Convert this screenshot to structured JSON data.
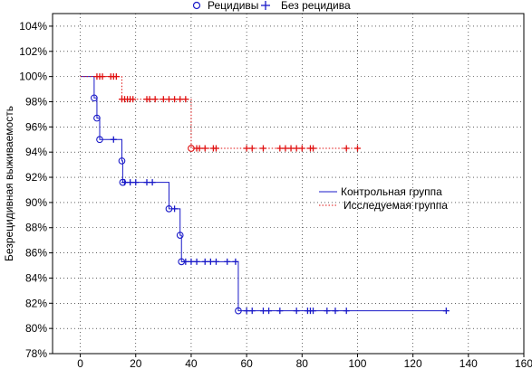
{
  "chart_data": {
    "type": "line",
    "subtype": "kaplan-meier step plot",
    "title": "",
    "xlabel": "",
    "ylabel": "Безрецидивная выживаемость",
    "xlim": [
      -10,
      160
    ],
    "ylim": [
      78,
      105
    ],
    "x_ticks": [
      0,
      20,
      40,
      60,
      80,
      100,
      120,
      140,
      160
    ],
    "y_ticks": [
      78,
      80,
      82,
      84,
      86,
      88,
      90,
      92,
      94,
      96,
      98,
      100,
      102,
      104
    ],
    "y_tick_labels": [
      "78%",
      "80%",
      "82%",
      "84%",
      "86%",
      "88%",
      "90%",
      "92%",
      "94%",
      "96%",
      "98%",
      "100%",
      "102%",
      "104%"
    ],
    "grid": true,
    "marker_legend": {
      "position": "top-center",
      "items": [
        {
          "symbol": "circle",
          "label": "Рецидивы"
        },
        {
          "symbol": "plus",
          "label": "Без рецидива"
        }
      ]
    },
    "legend_position": "right",
    "series": [
      {
        "name": "Контрольная группа",
        "color": "#1a1ac8",
        "line_style": "solid",
        "steps": [
          [
            0,
            100
          ],
          [
            5,
            98.3
          ],
          [
            6,
            96.7
          ],
          [
            7,
            95
          ],
          [
            15,
            93.3
          ],
          [
            15.3,
            91.6
          ],
          [
            32,
            89.5
          ],
          [
            36,
            87.4
          ],
          [
            36.5,
            85.3
          ],
          [
            57,
            81.4
          ],
          [
            132,
            81.4
          ]
        ],
        "events": [
          [
            5,
            98.3
          ],
          [
            6,
            96.7
          ],
          [
            7,
            95
          ],
          [
            15,
            93.3
          ],
          [
            15.3,
            91.6
          ],
          [
            32,
            89.5
          ],
          [
            36,
            87.4
          ],
          [
            36.5,
            85.3
          ],
          [
            57,
            81.4
          ]
        ],
        "censored": [
          [
            12,
            95
          ],
          [
            16,
            91.6
          ],
          [
            18,
            91.6
          ],
          [
            20,
            91.6
          ],
          [
            24,
            91.6
          ],
          [
            26,
            91.6
          ],
          [
            34,
            89.5
          ],
          [
            38,
            85.3
          ],
          [
            40,
            85.3
          ],
          [
            42,
            85.3
          ],
          [
            45,
            85.3
          ],
          [
            47,
            85.3
          ],
          [
            49,
            85.3
          ],
          [
            53,
            85.3
          ],
          [
            56,
            85.3
          ],
          [
            60,
            81.4
          ],
          [
            62,
            81.4
          ],
          [
            66,
            81.4
          ],
          [
            68,
            81.4
          ],
          [
            72,
            81.4
          ],
          [
            78,
            81.4
          ],
          [
            82,
            81.4
          ],
          [
            83,
            81.4
          ],
          [
            84,
            81.4
          ],
          [
            89,
            81.4
          ],
          [
            92,
            81.4
          ],
          [
            96,
            81.4
          ],
          [
            132,
            81.4
          ]
        ]
      },
      {
        "name": "Исследуемая группа",
        "color": "#e01010",
        "line_style": "dotted",
        "steps": [
          [
            0,
            100
          ],
          [
            15,
            98.2
          ],
          [
            40,
            94.3
          ],
          [
            100,
            94.3
          ]
        ],
        "events": [
          [
            40,
            94.3
          ]
        ],
        "censored": [
          [
            6,
            100
          ],
          [
            7,
            100
          ],
          [
            8,
            100
          ],
          [
            11,
            100
          ],
          [
            12,
            100
          ],
          [
            13,
            100
          ],
          [
            15,
            98.2
          ],
          [
            16,
            98.2
          ],
          [
            17,
            98.2
          ],
          [
            18,
            98.2
          ],
          [
            19,
            98.2
          ],
          [
            24,
            98.2
          ],
          [
            25,
            98.2
          ],
          [
            27,
            98.2
          ],
          [
            30,
            98.2
          ],
          [
            32,
            98.2
          ],
          [
            34,
            98.2
          ],
          [
            36,
            98.2
          ],
          [
            38,
            98.2
          ],
          [
            42,
            94.3
          ],
          [
            43,
            94.3
          ],
          [
            45,
            94.3
          ],
          [
            48,
            94.3
          ],
          [
            49,
            94.3
          ],
          [
            60,
            94.3
          ],
          [
            62,
            94.3
          ],
          [
            66,
            94.3
          ],
          [
            72,
            94.3
          ],
          [
            74,
            94.3
          ],
          [
            76,
            94.3
          ],
          [
            78,
            94.3
          ],
          [
            80,
            94.3
          ],
          [
            83,
            94.3
          ],
          [
            84,
            94.3
          ],
          [
            96,
            94.3
          ],
          [
            100,
            94.3
          ]
        ]
      }
    ]
  }
}
